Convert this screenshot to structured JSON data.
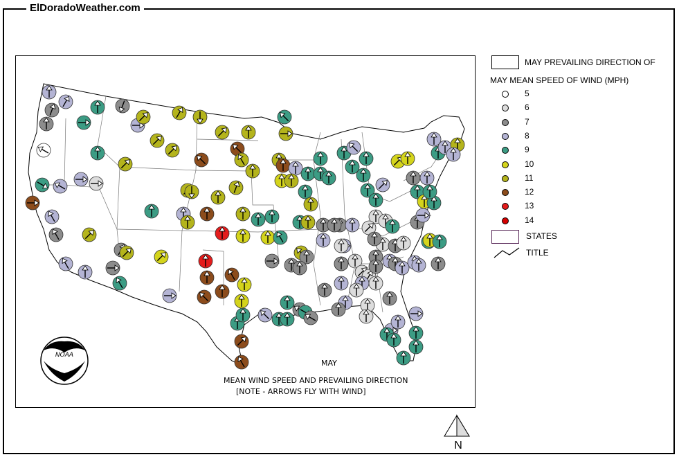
{
  "site_title": "ElDoradoWeather.com",
  "map": {
    "caption_month": "MAY",
    "caption_title": "MEAN WIND SPEED AND PREVAILING DIRECTION",
    "caption_note": "[NOTE - ARROWS FLY WITH WIND]",
    "logo_text": "NOAA",
    "north_label": "N"
  },
  "legend": {
    "direction_label": "MAY PREVAILING DIRECTION OF",
    "speed_title": "MAY MEAN SPEED OF WIND (MPH)",
    "speeds": [
      {
        "value": "5",
        "color": "#ffffff"
      },
      {
        "value": "6",
        "color": "#dcdcdc"
      },
      {
        "value": "7",
        "color": "#8c8c8c"
      },
      {
        "value": "8",
        "color": "#b4b4d4"
      },
      {
        "value": "9",
        "color": "#3c9c84"
      },
      {
        "value": "10",
        "color": "#d4d41c"
      },
      {
        "value": "11",
        "color": "#b4b41c"
      },
      {
        "value": "12",
        "color": "#8c4c1c"
      },
      {
        "value": "13",
        "color": "#e41c1c"
      },
      {
        "value": "14",
        "color": "#d40000"
      }
    ],
    "states_label": "STATES",
    "title_label": "TITLE"
  }
}
